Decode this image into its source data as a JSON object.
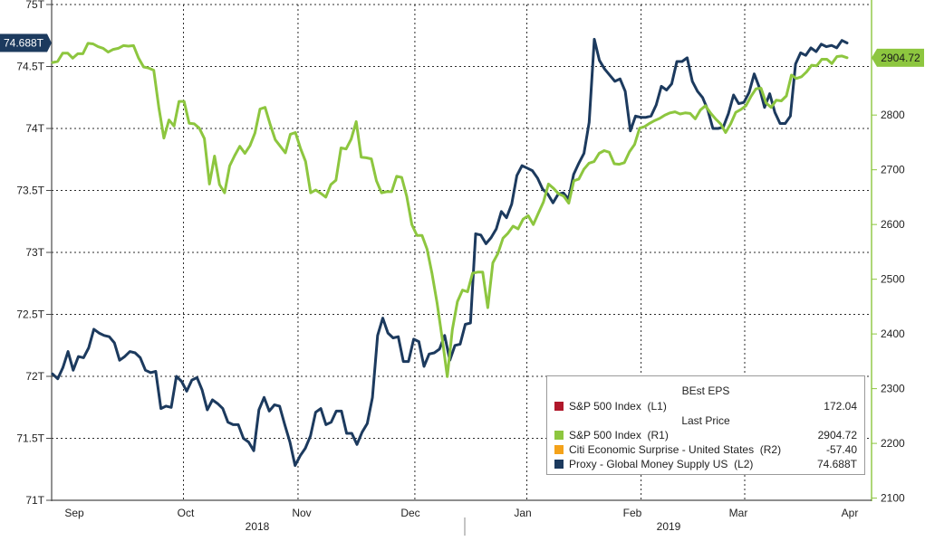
{
  "chart_data": {
    "type": "line",
    "left_axis": {
      "ticks": [
        "71T",
        "71.5T",
        "72T",
        "72.5T",
        "73T",
        "73.5T",
        "74T",
        "74.5T",
        "75T"
      ],
      "tick_values": [
        71,
        71.5,
        72,
        72.5,
        73,
        73.5,
        74,
        74.5,
        75
      ],
      "range": [
        71,
        75
      ],
      "current_value_label": "74.688T"
    },
    "right_axis": {
      "ticks": [
        "2100",
        "2200",
        "2300",
        "2400",
        "2500",
        "2600",
        "2700",
        "2800"
      ],
      "tick_values": [
        2100,
        2200,
        2300,
        2400,
        2500,
        2600,
        2700,
        2800
      ],
      "range": [
        2096,
        3002
      ],
      "current_value_label": "2904.72"
    },
    "x_axis": {
      "months": [
        "Sep",
        "Oct",
        "Nov",
        "Dec",
        "Jan",
        "Feb",
        "Mar",
        "Apr"
      ],
      "years": [
        "2018",
        "2019"
      ]
    },
    "grid": true,
    "series": [
      {
        "name": "Proxy - Global Money Supply US (L2)",
        "color": "#1c3a5e",
        "axis": "left",
        "values": [
          72.02,
          71.98,
          72.07,
          72.2,
          72.05,
          72.16,
          72.15,
          72.23,
          72.38,
          72.35,
          72.33,
          72.32,
          72.27,
          72.13,
          72.16,
          72.2,
          72.19,
          72.15,
          72.05,
          72.03,
          72.04,
          71.74,
          71.76,
          71.75,
          72.0,
          71.96,
          71.88,
          71.97,
          71.99,
          71.89,
          71.73,
          71.81,
          71.78,
          71.74,
          71.63,
          71.61,
          71.61,
          71.5,
          71.47,
          71.4,
          71.73,
          71.83,
          71.72,
          71.77,
          71.76,
          71.61,
          71.47,
          71.28,
          71.36,
          71.42,
          71.52,
          71.71,
          71.74,
          71.61,
          71.63,
          71.72,
          71.72,
          71.54,
          71.54,
          71.45,
          71.55,
          71.62,
          71.83,
          72.33,
          72.47,
          72.35,
          72.31,
          72.32,
          72.12,
          72.12,
          72.3,
          72.28,
          72.08,
          72.18,
          72.19,
          72.22,
          72.33,
          72.13,
          72.25,
          72.26,
          72.42,
          72.43,
          73.15,
          73.14,
          73.07,
          73.12,
          73.19,
          73.33,
          73.28,
          73.39,
          73.62,
          73.7,
          73.68,
          73.66,
          73.6,
          73.51,
          73.47,
          73.4,
          73.47,
          73.48,
          73.43,
          73.63,
          73.72,
          73.8,
          74.05,
          74.72,
          74.55,
          74.48,
          74.43,
          74.38,
          74.4,
          74.3,
          73.98,
          74.1,
          74.09,
          74.09,
          74.1,
          74.19,
          74.34,
          74.31,
          74.36,
          74.54,
          74.54,
          74.57,
          74.38,
          74.3,
          74.25,
          74.15,
          74.0,
          74.0,
          74.01,
          74.12,
          74.27,
          74.2,
          74.21,
          74.29,
          74.44,
          74.33,
          74.17,
          74.28,
          74.13,
          74.04,
          74.04,
          74.1,
          74.52,
          74.61,
          74.59,
          74.65,
          74.62,
          74.68,
          74.66,
          74.67,
          74.65,
          74.71,
          74.69
        ]
      },
      {
        "name": "S&P 500 Index (R1)",
        "color": "#8dc63f",
        "axis": "right",
        "values": [
          2896,
          2898,
          2913,
          2913,
          2904,
          2912,
          2912,
          2931,
          2930,
          2925,
          2922,
          2915,
          2920,
          2922,
          2927,
          2926,
          2927,
          2904,
          2888,
          2886,
          2882,
          2814,
          2758,
          2791,
          2780,
          2825,
          2825,
          2785,
          2784,
          2776,
          2757,
          2674,
          2725,
          2673,
          2658,
          2707,
          2726,
          2743,
          2730,
          2744,
          2767,
          2811,
          2814,
          2783,
          2755,
          2743,
          2731,
          2765,
          2768,
          2739,
          2715,
          2658,
          2663,
          2657,
          2650,
          2673,
          2681,
          2740,
          2738,
          2756,
          2788,
          2723,
          2722,
          2720,
          2680,
          2658,
          2660,
          2660,
          2688,
          2686,
          2651,
          2600,
          2580,
          2580,
          2555,
          2510,
          2456,
          2392,
          2322,
          2408,
          2459,
          2480,
          2477,
          2511,
          2513,
          2513,
          2448,
          2530,
          2547,
          2575,
          2584,
          2597,
          2592,
          2610,
          2616,
          2600,
          2621,
          2641,
          2674,
          2666,
          2656,
          2652,
          2639,
          2680,
          2683,
          2701,
          2712,
          2715,
          2730,
          2735,
          2732,
          2711,
          2710,
          2713,
          2733,
          2746,
          2776,
          2779,
          2785,
          2790,
          2794,
          2800,
          2804,
          2806,
          2802,
          2804,
          2803,
          2793,
          2809,
          2817,
          2804,
          2793,
          2784,
          2768,
          2784,
          2805,
          2810,
          2817,
          2834,
          2848,
          2849,
          2822,
          2814,
          2827,
          2826,
          2835,
          2873,
          2867,
          2870,
          2879,
          2891,
          2890,
          2902,
          2902,
          2894,
          2907,
          2908,
          2904.72
        ]
      }
    ],
    "legend": {
      "placement": "bottom-right",
      "groups": [
        {
          "title": "BEst EPS",
          "entries": [
            {
              "name": "S&P 500 Index  (L1)",
              "value": "172.04",
              "color": "#b0182b"
            }
          ]
        },
        {
          "title": "Last Price",
          "entries": [
            {
              "name": "S&P 500 Index  (R1)",
              "value": "2904.72",
              "color": "#8dc63f"
            },
            {
              "name": "Citi Economic Surprise - United States  (R2)",
              "value": "-57.40",
              "color": "#f4a21a"
            },
            {
              "name": "Proxy - Global Money Supply US  (L2)",
              "value": "74.688T",
              "color": "#1c3a5e"
            }
          ]
        }
      ]
    }
  }
}
